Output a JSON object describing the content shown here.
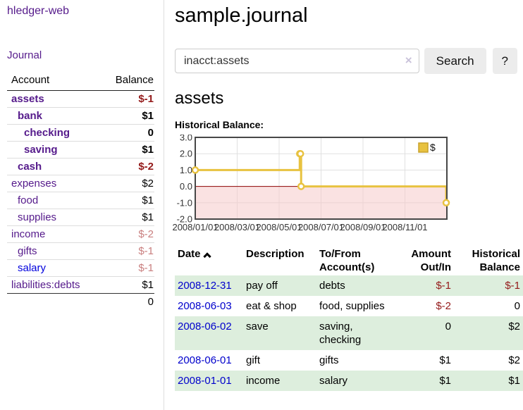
{
  "app": {
    "title": "hledger-web"
  },
  "colors": {
    "link_visited": "#551a8b",
    "link_unvisited": "#0000dd",
    "negative": "#941a1a",
    "negative_light": "#c97f7f",
    "row_stripe": "#ddeedd",
    "series_gold": "#e8c240",
    "negative_region": "#f6caca",
    "zero_line": "#8b0000"
  },
  "sidebar": {
    "journal_label": "Journal",
    "account_header": "Account",
    "balance_header": "Balance",
    "accounts": [
      {
        "label": "assets",
        "balance": "$-1",
        "depth": 1,
        "bold": true,
        "balance_style": "neg",
        "link_style": "visited"
      },
      {
        "label": "bank",
        "balance": "$1",
        "depth": 2,
        "bold": true,
        "balance_style": "norm",
        "link_style": "visited"
      },
      {
        "label": "checking",
        "balance": "0",
        "depth": 3,
        "bold": true,
        "balance_style": "norm",
        "link_style": "visited"
      },
      {
        "label": "saving",
        "balance": "$1",
        "depth": 3,
        "bold": true,
        "balance_style": "norm",
        "link_style": "visited"
      },
      {
        "label": "cash",
        "balance": "$-2",
        "depth": 2,
        "bold": true,
        "balance_style": "neg",
        "link_style": "visited"
      },
      {
        "label": "expenses",
        "balance": "$2",
        "depth": 1,
        "bold": false,
        "balance_style": "norm",
        "link_style": "visited"
      },
      {
        "label": "food",
        "balance": "$1",
        "depth": 2,
        "bold": false,
        "balance_style": "norm",
        "link_style": "visited"
      },
      {
        "label": "supplies",
        "balance": "$1",
        "depth": 2,
        "bold": false,
        "balance_style": "norm",
        "link_style": "visited"
      },
      {
        "label": "income",
        "balance": "$-2",
        "depth": 1,
        "bold": false,
        "balance_style": "neglight",
        "link_style": "visited"
      },
      {
        "label": "gifts",
        "balance": "$-1",
        "depth": 2,
        "bold": false,
        "balance_style": "neglight",
        "link_style": "visited"
      },
      {
        "label": "salary",
        "balance": "$-1",
        "depth": 2,
        "bold": false,
        "balance_style": "neglight",
        "link_style": "unvisited"
      },
      {
        "label": "liabilities:debts",
        "balance": "$1",
        "depth": 1,
        "bold": false,
        "balance_style": "norm",
        "link_style": "visited"
      }
    ],
    "total": "0"
  },
  "header": {
    "title": "sample.journal"
  },
  "search": {
    "value": "inacct:assets",
    "clear_icon": "×",
    "button_label": "Search",
    "help_label": "?"
  },
  "register": {
    "heading": "assets",
    "chart_label": "Historical Balance:",
    "headers": [
      {
        "label": "Date",
        "align": "left",
        "sorted": "asc"
      },
      {
        "label": "Description",
        "align": "left"
      },
      {
        "label": "To/From Account(s)",
        "align": "left"
      },
      {
        "label": "Amount Out/In",
        "align": "right"
      },
      {
        "label": "Historical Balance",
        "align": "right"
      }
    ],
    "rows": [
      {
        "date": "2008-12-31",
        "description": "pay off",
        "accounts": "debts",
        "amount": "$-1",
        "balance": "$-1",
        "amount_style": "neg",
        "balance_style": "neg"
      },
      {
        "date": "2008-06-03",
        "description": "eat & shop",
        "accounts": "food, supplies",
        "amount": "$-2",
        "balance": "0",
        "amount_style": "neg",
        "balance_style": "norm"
      },
      {
        "date": "2008-06-02",
        "description": "save",
        "accounts": "saving, checking",
        "amount": "0",
        "balance": "$2",
        "amount_style": "norm",
        "balance_style": "norm"
      },
      {
        "date": "2008-06-01",
        "description": "gift",
        "accounts": "gifts",
        "amount": "$1",
        "balance": "$2",
        "amount_style": "norm",
        "balance_style": "norm"
      },
      {
        "date": "2008-01-01",
        "description": "income",
        "accounts": "salary",
        "amount": "$1",
        "balance": "$1",
        "amount_style": "norm",
        "balance_style": "norm"
      }
    ]
  },
  "chart_data": {
    "type": "line",
    "step": true,
    "title": "Historical Balance",
    "series": [
      {
        "name": "$",
        "color": "#e8c240",
        "points": [
          {
            "x": "2008-01-01",
            "y": 1
          },
          {
            "x": "2008-06-01",
            "y": 2
          },
          {
            "x": "2008-06-02",
            "y": 2
          },
          {
            "x": "2008-06-03",
            "y": 0
          },
          {
            "x": "2008-12-31",
            "y": -1
          }
        ]
      }
    ],
    "x_range": [
      "2008-01-01",
      "2009-01-01"
    ],
    "x_tick_labels": [
      "2008/01/01",
      "2008/03/01",
      "2008/05/01",
      "2008/07/01",
      "2008/09/01",
      "2008/11/01"
    ],
    "y_ticks": [
      "3.0",
      "2.0",
      "1.0",
      "0.0",
      "-1.0",
      "-2.0"
    ],
    "ylim": [
      -2,
      3
    ],
    "grid": true,
    "legend": {
      "label": "$",
      "position": "top-right"
    },
    "negative_region_fill": "#f6caca",
    "zero_line_color": "#8b0000"
  }
}
